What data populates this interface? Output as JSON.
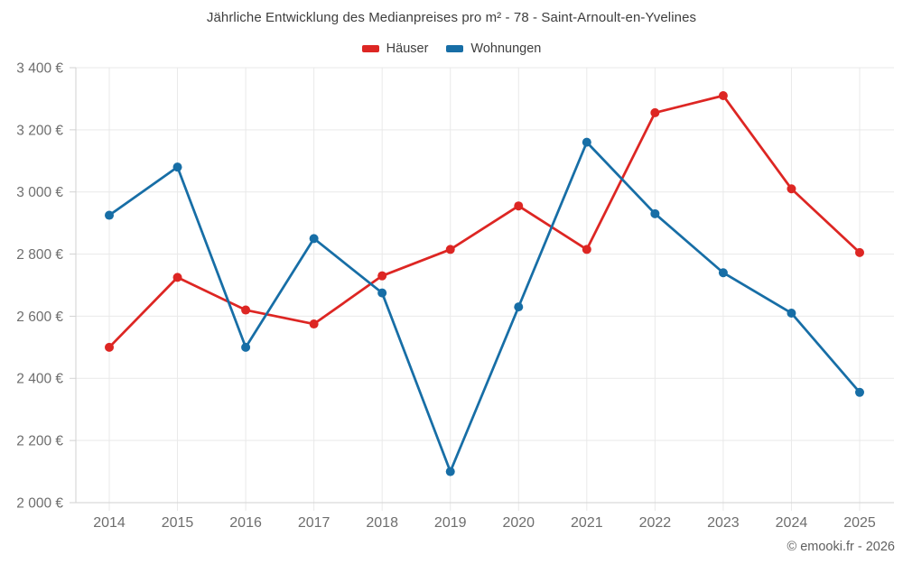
{
  "header": {
    "title": "Jährliche Entwicklung des Medianpreises pro m² - 78 - Saint-Arnoult-en-Yvelines"
  },
  "legend": {
    "items": [
      {
        "label": "Häuser",
        "color": "#dd2623"
      },
      {
        "label": "Wohnungen",
        "color": "#176ea6"
      }
    ]
  },
  "footer": {
    "attribution": "© emooki.fr - 2026"
  },
  "colors": {
    "grid": "#e9e9e9",
    "axis": "#d2d2d2",
    "axis_text": "#6e6e6e"
  },
  "chart_data": {
    "type": "line",
    "title": "Jährliche Entwicklung des Medianpreises pro m² - 78 - Saint-Arnoult-en-Yvelines",
    "x": [
      "2014",
      "2015",
      "2016",
      "2017",
      "2018",
      "2019",
      "2020",
      "2021",
      "2022",
      "2023",
      "2024",
      "2025"
    ],
    "series": [
      {
        "name": "Häuser",
        "color": "#dd2623",
        "values": [
          2500,
          2725,
          2620,
          2575,
          2730,
          2815,
          2955,
          2815,
          3255,
          3310,
          3010,
          2805
        ]
      },
      {
        "name": "Wohnungen",
        "color": "#176ea6",
        "values": [
          2925,
          3080,
          2500,
          2850,
          2675,
          2100,
          2630,
          3160,
          2930,
          2740,
          2610,
          2355
        ]
      }
    ],
    "xlabel": "",
    "ylabel": "",
    "ylim": [
      2000,
      3400
    ],
    "yticks": [
      2000,
      2200,
      2400,
      2600,
      2800,
      3000,
      3200,
      3400
    ],
    "ytick_labels": [
      "2 000 €",
      "2 200 €",
      "2 400 €",
      "2 600 €",
      "2 800 €",
      "3 000 €",
      "3 200 €",
      "3 400 €"
    ],
    "grid": true,
    "legend_position": "top",
    "unit": "€"
  }
}
